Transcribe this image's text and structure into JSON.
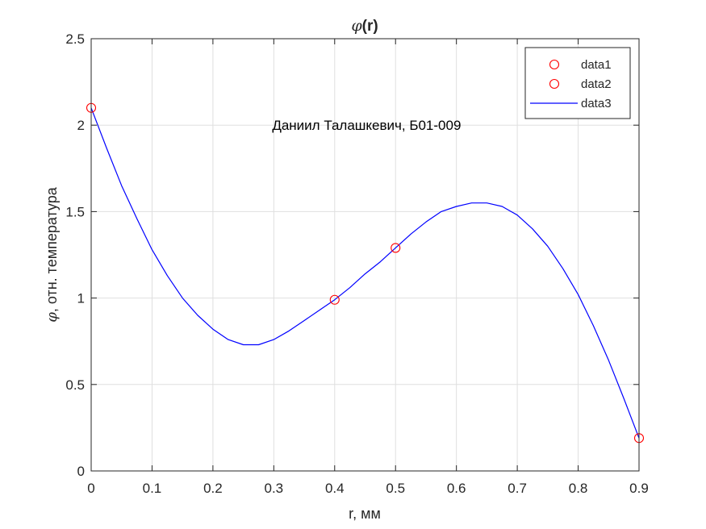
{
  "chart_data": {
    "type": "line",
    "title": "(r)",
    "title_symbol": "φ",
    "xlabel": "r, мм",
    "ylabel": ", отн. температура",
    "ylabel_symbol": "φ",
    "xlim": [
      0,
      0.9
    ],
    "ylim": [
      0,
      2.5
    ],
    "x_ticks": [
      0,
      0.1,
      0.2,
      0.3,
      0.4,
      0.5,
      0.6,
      0.7,
      0.8,
      0.9
    ],
    "x_tick_labels": [
      "0",
      "0.1",
      "0.2",
      "0.3",
      "0.4",
      "0.5",
      "0.6",
      "0.7",
      "0.8",
      "0.9"
    ],
    "y_ticks": [
      0,
      0.5,
      1,
      1.5,
      2,
      2.5
    ],
    "y_tick_labels": [
      "0",
      "0.5",
      "1",
      "1.5",
      "2",
      "2.5"
    ],
    "grid": true,
    "legend_position": "top-right",
    "annotation": "Даниил Талашкевич, Б01-009",
    "annotation_position": [
      0.3,
      2.0
    ],
    "series": [
      {
        "name": "data1",
        "kind": "markers",
        "color": "#ff0000",
        "x": [
          0,
          0.9
        ],
        "y": [
          2.1,
          0.19
        ]
      },
      {
        "name": "data2",
        "kind": "markers",
        "color": "#ff0000",
        "x": [
          0.4,
          0.5
        ],
        "y": [
          0.99,
          1.29
        ]
      },
      {
        "name": "data3",
        "kind": "line",
        "color": "#0000ff",
        "x": [
          0,
          0.025,
          0.05,
          0.075,
          0.1,
          0.125,
          0.15,
          0.175,
          0.2,
          0.225,
          0.25,
          0.275,
          0.3,
          0.325,
          0.35,
          0.375,
          0.4,
          0.425,
          0.45,
          0.475,
          0.5,
          0.525,
          0.55,
          0.575,
          0.6,
          0.625,
          0.65,
          0.675,
          0.7,
          0.725,
          0.75,
          0.775,
          0.8,
          0.825,
          0.85,
          0.875,
          0.9
        ],
        "y": [
          2.1,
          1.87,
          1.65,
          1.46,
          1.28,
          1.13,
          1.0,
          0.9,
          0.82,
          0.76,
          0.73,
          0.73,
          0.76,
          0.81,
          0.87,
          0.93,
          0.99,
          1.06,
          1.14,
          1.21,
          1.29,
          1.37,
          1.44,
          1.5,
          1.53,
          1.55,
          1.55,
          1.53,
          1.48,
          1.4,
          1.3,
          1.17,
          1.02,
          0.84,
          0.64,
          0.42,
          0.19
        ]
      }
    ]
  }
}
